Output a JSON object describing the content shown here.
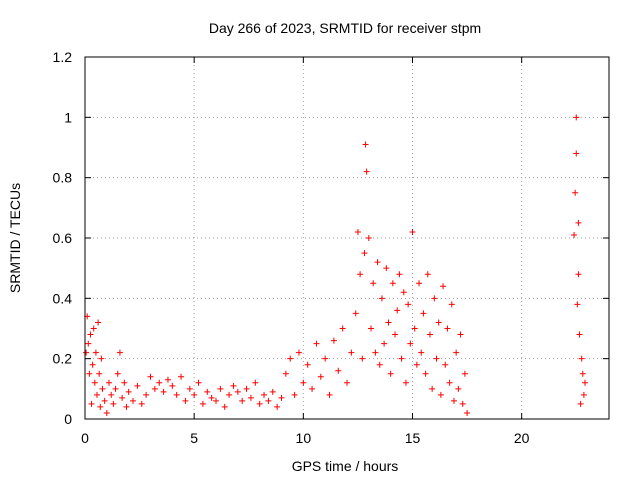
{
  "chart_data": {
    "type": "scatter",
    "title": "Day 266 of 2023, SRMTID for receiver stpm",
    "xlabel": "GPS time / hours",
    "ylabel": "SRMTID / TECUs",
    "xlim": [
      0,
      24
    ],
    "ylim": [
      0,
      1.2
    ],
    "xticks": [
      0,
      5,
      10,
      15,
      20
    ],
    "xtick_labels": [
      "0",
      "5",
      "10",
      "15",
      "20"
    ],
    "yticks": [
      0,
      0.2,
      0.4,
      0.6,
      0.8,
      1.0,
      1.2
    ],
    "ytick_labels": [
      "0",
      "0.2",
      "0.4",
      "0.6",
      "0.8",
      "1",
      "1.2"
    ],
    "grid": true,
    "marker": "plus",
    "color": "#ff0000",
    "series": [
      {
        "name": "SRMTID",
        "x": [
          0.05,
          0.1,
          0.15,
          0.2,
          0.25,
          0.3,
          0.35,
          0.4,
          0.45,
          0.5,
          0.55,
          0.6,
          0.65,
          0.7,
          0.75,
          0.8,
          0.9,
          1.0,
          1.1,
          1.2,
          1.3,
          1.4,
          1.5,
          1.6,
          1.7,
          1.8,
          1.9,
          2.0,
          2.2,
          2.4,
          2.6,
          2.8,
          3.0,
          3.2,
          3.4,
          3.6,
          3.8,
          4.0,
          4.2,
          4.4,
          4.6,
          4.8,
          5.0,
          5.2,
          5.4,
          5.6,
          5.8,
          6.0,
          6.2,
          6.4,
          6.6,
          6.8,
          7.0,
          7.2,
          7.4,
          7.6,
          7.8,
          8.0,
          8.2,
          8.4,
          8.6,
          8.8,
          9.0,
          9.2,
          9.4,
          9.6,
          9.8,
          10.0,
          10.2,
          10.4,
          10.6,
          10.8,
          11.0,
          11.2,
          11.4,
          11.6,
          11.8,
          12.0,
          12.2,
          12.4,
          12.5,
          12.6,
          12.7,
          12.8,
          12.85,
          12.9,
          13.0,
          13.1,
          13.2,
          13.3,
          13.4,
          13.5,
          13.6,
          13.7,
          13.8,
          13.9,
          14.0,
          14.1,
          14.2,
          14.3,
          14.4,
          14.5,
          14.6,
          14.7,
          14.8,
          14.9,
          15.0,
          15.1,
          15.2,
          15.3,
          15.4,
          15.5,
          15.6,
          15.7,
          15.8,
          15.9,
          16.0,
          16.1,
          16.2,
          16.3,
          16.4,
          16.5,
          16.6,
          16.7,
          16.8,
          16.9,
          17.0,
          17.1,
          17.2,
          17.3,
          17.4,
          17.5,
          22.4,
          22.45,
          22.5,
          22.5,
          22.55,
          22.6,
          22.6,
          22.65,
          22.7,
          22.75,
          22.8,
          22.85,
          22.9
        ],
        "y": [
          0.22,
          0.34,
          0.25,
          0.15,
          0.28,
          0.05,
          0.18,
          0.3,
          0.12,
          0.22,
          0.08,
          0.32,
          0.15,
          0.04,
          0.2,
          0.1,
          0.06,
          0.02,
          0.12,
          0.08,
          0.05,
          0.1,
          0.15,
          0.22,
          0.07,
          0.12,
          0.04,
          0.09,
          0.06,
          0.11,
          0.05,
          0.08,
          0.14,
          0.1,
          0.12,
          0.09,
          0.13,
          0.11,
          0.08,
          0.14,
          0.06,
          0.1,
          0.08,
          0.12,
          0.05,
          0.09,
          0.07,
          0.06,
          0.1,
          0.04,
          0.08,
          0.11,
          0.09,
          0.06,
          0.1,
          0.07,
          0.12,
          0.05,
          0.08,
          0.06,
          0.09,
          0.04,
          0.07,
          0.15,
          0.2,
          0.08,
          0.22,
          0.12,
          0.18,
          0.1,
          0.25,
          0.14,
          0.2,
          0.08,
          0.26,
          0.16,
          0.3,
          0.12,
          0.22,
          0.35,
          0.62,
          0.48,
          0.2,
          0.55,
          0.91,
          0.82,
          0.6,
          0.3,
          0.45,
          0.22,
          0.52,
          0.18,
          0.4,
          0.25,
          0.5,
          0.32,
          0.15,
          0.45,
          0.28,
          0.36,
          0.48,
          0.2,
          0.42,
          0.12,
          0.38,
          0.25,
          0.62,
          0.3,
          0.18,
          0.45,
          0.22,
          0.35,
          0.15,
          0.48,
          0.28,
          0.1,
          0.4,
          0.2,
          0.32,
          0.08,
          0.44,
          0.18,
          0.3,
          0.12,
          0.38,
          0.06,
          0.22,
          0.1,
          0.28,
          0.05,
          0.15,
          0.02,
          0.61,
          0.75,
          1.0,
          0.88,
          0.38,
          0.65,
          0.48,
          0.28,
          0.05,
          0.2,
          0.15,
          0.08,
          0.12
        ]
      }
    ]
  }
}
